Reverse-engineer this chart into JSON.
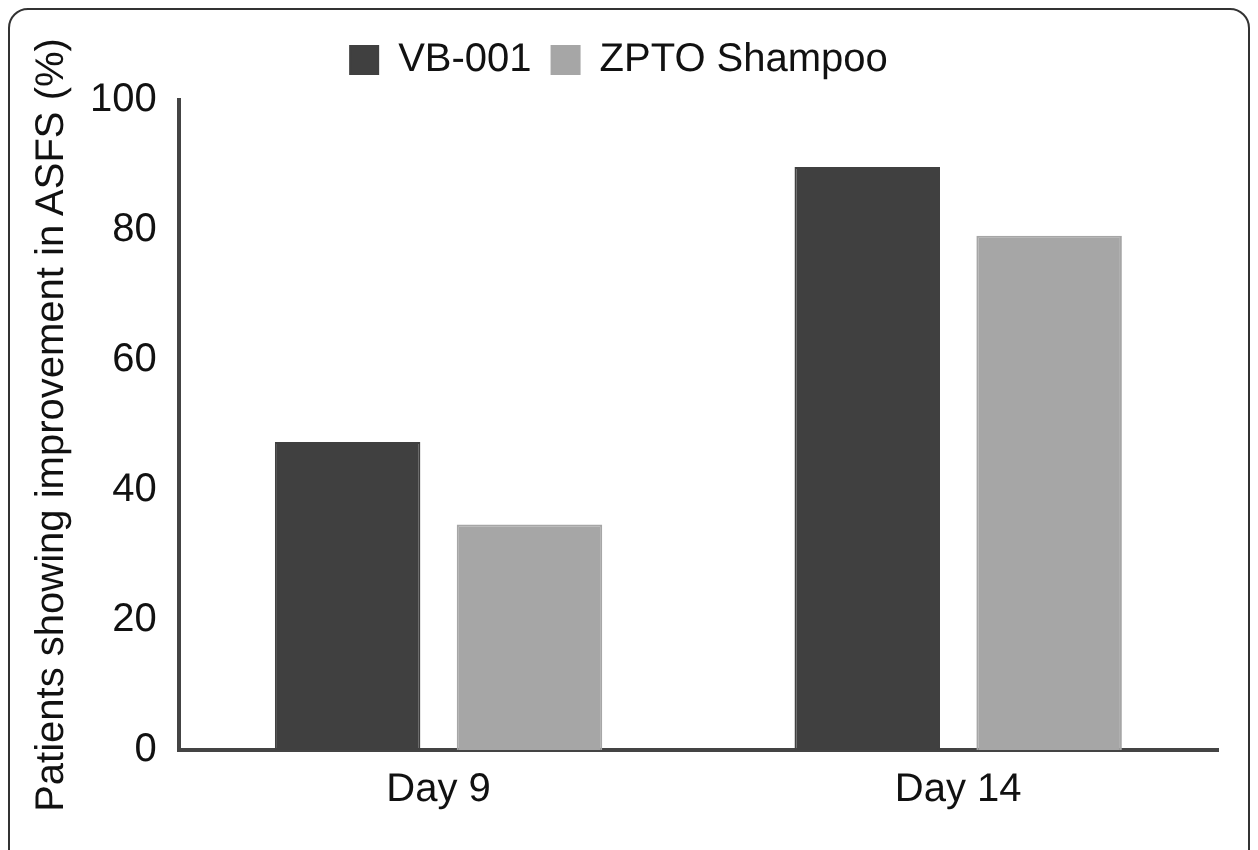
{
  "chart_data": {
    "type": "bar",
    "ylabel": "Patients showing improvement in ASFS (%)",
    "categories": [
      "Day 9",
      "Day 14"
    ],
    "series": [
      {
        "name": "VB-001",
        "color": "#404040",
        "values": [
          47.4,
          89.7
        ]
      },
      {
        "name": "ZPTO Shampoo",
        "color": "#a6a6a6",
        "values": [
          34.7,
          79.1
        ]
      }
    ],
    "ylim": [
      0,
      100
    ],
    "yticks": [
      0,
      20,
      40,
      60,
      80,
      100
    ],
    "grid": false,
    "legend": "top"
  }
}
